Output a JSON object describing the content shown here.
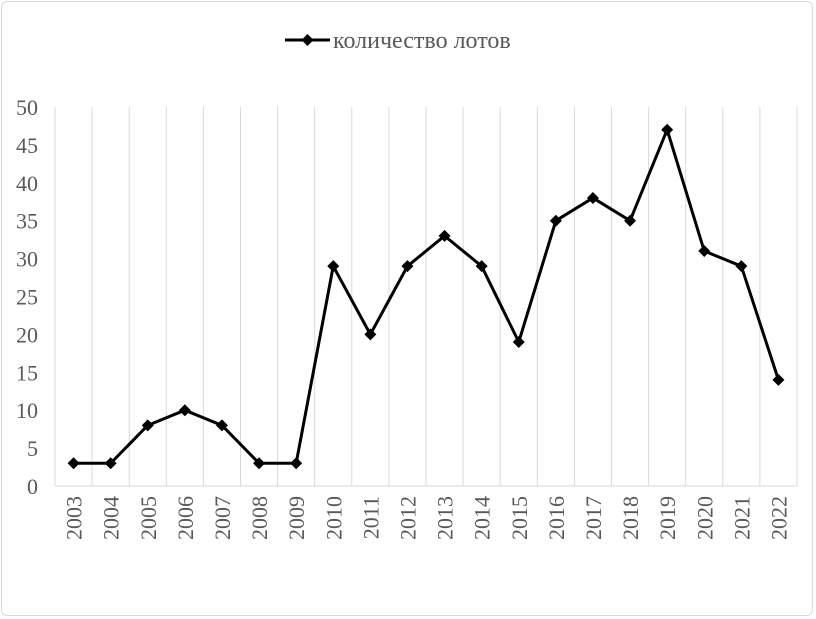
{
  "chart_data": {
    "type": "line",
    "title": "",
    "xlabel": "",
    "ylabel": "",
    "categories": [
      "2003",
      "2004",
      "2005",
      "2006",
      "2007",
      "2008",
      "2009",
      "2010",
      "2011",
      "2012",
      "2013",
      "2014",
      "2015",
      "2016",
      "2017",
      "2018",
      "2019",
      "2020",
      "2021",
      "2022"
    ],
    "series": [
      {
        "name": "количество лотов",
        "values": [
          3,
          3,
          8,
          10,
          8,
          3,
          3,
          29,
          20,
          29,
          33,
          29,
          19,
          35,
          38,
          35,
          47,
          31,
          29,
          14
        ],
        "color": "#000000",
        "marker": "diamond"
      }
    ],
    "ylim": [
      0,
      50
    ],
    "yticks": [
      0,
      5,
      10,
      15,
      20,
      25,
      30,
      35,
      40,
      45,
      50
    ],
    "grid": "vertical",
    "legend": "top"
  }
}
